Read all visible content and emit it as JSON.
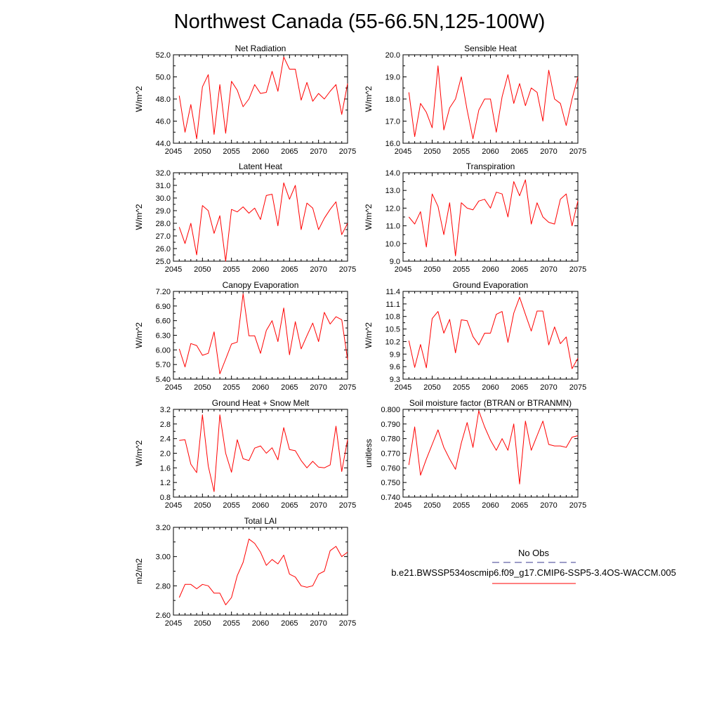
{
  "figure": {
    "title": "Northwest Canada (55-66.5N,125-100W)"
  },
  "legend": {
    "obs_label": "No Obs",
    "obs_color": "#3b3b8f",
    "model_label": "b.e21.BWSSP534oscmip6.f09_g17.CMIP6-SSP5-3.4OS-WACCM.005",
    "model_color": "#ff0000"
  },
  "chart_data": [
    {
      "type": "line",
      "title": "Net Radiation",
      "ylabel": "W/m^2",
      "xlim": [
        2045,
        2075
      ],
      "ylim": [
        44,
        52
      ],
      "yticks": [
        "44.0",
        "46.0",
        "48.0",
        "50.0",
        "52.0"
      ],
      "xticks": [
        "2045",
        "2050",
        "2055",
        "2060",
        "2065",
        "2070",
        "2075"
      ],
      "x": [
        2046,
        2047,
        2048,
        2049,
        2050,
        2051,
        2052,
        2053,
        2054,
        2055,
        2056,
        2057,
        2058,
        2059,
        2060,
        2061,
        2062,
        2063,
        2064,
        2065,
        2066,
        2067,
        2068,
        2069,
        2070,
        2071,
        2072,
        2073,
        2074,
        2075
      ],
      "series": [
        {
          "values": [
            48.3,
            45.0,
            47.5,
            44.4,
            49.1,
            50.2,
            44.8,
            49.3,
            44.9,
            49.6,
            48.8,
            47.3,
            48.0,
            49.3,
            48.5,
            48.6,
            50.5,
            48.7,
            51.8,
            50.7,
            50.7,
            47.9,
            49.5,
            47.8,
            48.5,
            48.0,
            48.7,
            49.3,
            46.6,
            49.4
          ]
        }
      ]
    },
    {
      "type": "line",
      "title": "Sensible Heat",
      "ylabel": "W/m^2",
      "xlim": [
        2045,
        2075
      ],
      "ylim": [
        16,
        20
      ],
      "yticks": [
        "16.0",
        "17.0",
        "18.0",
        "19.0",
        "20.0"
      ],
      "xticks": [
        "2045",
        "2050",
        "2055",
        "2060",
        "2065",
        "2070",
        "2075"
      ],
      "x": [
        2046,
        2047,
        2048,
        2049,
        2050,
        2051,
        2052,
        2053,
        2054,
        2055,
        2056,
        2057,
        2058,
        2059,
        2060,
        2061,
        2062,
        2063,
        2064,
        2065,
        2066,
        2067,
        2068,
        2069,
        2070,
        2071,
        2072,
        2073,
        2074,
        2075
      ],
      "series": [
        {
          "values": [
            18.3,
            16.3,
            17.8,
            17.4,
            16.7,
            19.5,
            16.6,
            17.6,
            18.0,
            19.0,
            17.5,
            16.2,
            17.5,
            18.0,
            18.0,
            16.5,
            18.1,
            19.1,
            17.8,
            18.7,
            17.7,
            18.5,
            18.3,
            17.0,
            19.3,
            18.0,
            17.8,
            16.8,
            18.0,
            19.0
          ]
        }
      ]
    },
    {
      "type": "line",
      "title": "Latent Heat",
      "ylabel": "W/m^2",
      "xlim": [
        2045,
        2075
      ],
      "ylim": [
        25,
        32
      ],
      "yticks": [
        "25.0",
        "26.0",
        "27.0",
        "28.0",
        "29.0",
        "30.0",
        "31.0",
        "32.0"
      ],
      "xticks": [
        "2045",
        "2050",
        "2055",
        "2060",
        "2065",
        "2070",
        "2075"
      ],
      "x": [
        2046,
        2047,
        2048,
        2049,
        2050,
        2051,
        2052,
        2053,
        2054,
        2055,
        2056,
        2057,
        2058,
        2059,
        2060,
        2061,
        2062,
        2063,
        2064,
        2065,
        2066,
        2067,
        2068,
        2069,
        2070,
        2071,
        2072,
        2073,
        2074,
        2075
      ],
      "series": [
        {
          "values": [
            27.7,
            26.4,
            28.0,
            25.5,
            29.4,
            29.0,
            27.2,
            28.6,
            25.0,
            29.1,
            28.9,
            29.3,
            28.8,
            29.2,
            28.3,
            30.2,
            30.3,
            27.8,
            31.2,
            29.9,
            31.0,
            27.5,
            29.6,
            29.2,
            27.5,
            28.4,
            29.1,
            29.7,
            27.1,
            28.0
          ]
        }
      ]
    },
    {
      "type": "line",
      "title": "Transpiration",
      "ylabel": "W/m^2",
      "xlim": [
        2045,
        2075
      ],
      "ylim": [
        9,
        14
      ],
      "yticks": [
        "9.0",
        "10.0",
        "11.0",
        "12.0",
        "13.0",
        "14.0"
      ],
      "xticks": [
        "2045",
        "2050",
        "2055",
        "2060",
        "2065",
        "2070",
        "2075"
      ],
      "x": [
        2046,
        2047,
        2048,
        2049,
        2050,
        2051,
        2052,
        2053,
        2054,
        2055,
        2056,
        2057,
        2058,
        2059,
        2060,
        2061,
        2062,
        2063,
        2064,
        2065,
        2066,
        2067,
        2068,
        2069,
        2070,
        2071,
        2072,
        2073,
        2074,
        2075
      ],
      "series": [
        {
          "values": [
            11.5,
            11.1,
            11.8,
            9.8,
            12.8,
            12.1,
            10.5,
            12.3,
            9.3,
            12.3,
            12.0,
            11.9,
            12.4,
            12.5,
            12.0,
            12.9,
            12.8,
            11.5,
            13.5,
            12.7,
            13.6,
            11.1,
            12.3,
            11.5,
            11.2,
            11.1,
            12.5,
            12.8,
            11.0,
            12.4
          ]
        }
      ]
    },
    {
      "type": "line",
      "title": "Canopy Evaporation",
      "ylabel": "W/m^2",
      "xlim": [
        2045,
        2075
      ],
      "ylim": [
        5.4,
        7.2
      ],
      "yticks": [
        "5.40",
        "5.70",
        "6.00",
        "6.30",
        "6.60",
        "6.90",
        "7.20"
      ],
      "xticks": [
        "2045",
        "2050",
        "2055",
        "2060",
        "2065",
        "2070",
        "2075"
      ],
      "x": [
        2046,
        2047,
        2048,
        2049,
        2050,
        2051,
        2052,
        2053,
        2054,
        2055,
        2056,
        2057,
        2058,
        2059,
        2060,
        2061,
        2062,
        2063,
        2064,
        2065,
        2066,
        2067,
        2068,
        2069,
        2070,
        2071,
        2072,
        2073,
        2074,
        2075
      ],
      "series": [
        {
          "values": [
            6.02,
            5.65,
            6.13,
            6.09,
            5.89,
            5.93,
            6.37,
            5.51,
            5.81,
            6.12,
            6.16,
            7.15,
            6.29,
            6.29,
            5.93,
            6.4,
            6.6,
            6.17,
            6.86,
            5.9,
            6.58,
            6.02,
            6.29,
            6.55,
            6.17,
            6.77,
            6.53,
            6.68,
            6.62,
            5.8
          ]
        }
      ]
    },
    {
      "type": "line",
      "title": "Ground Evaporation",
      "ylabel": "W/m^2",
      "xlim": [
        2045,
        2075
      ],
      "ylim": [
        9.3,
        11.4
      ],
      "yticks": [
        "9.3",
        "9.6",
        "9.9",
        "10.2",
        "10.5",
        "10.8",
        "11.1",
        "11.4"
      ],
      "xticks": [
        "2045",
        "2050",
        "2055",
        "2060",
        "2065",
        "2070",
        "2075"
      ],
      "x": [
        2046,
        2047,
        2048,
        2049,
        2050,
        2051,
        2052,
        2053,
        2054,
        2055,
        2056,
        2057,
        2058,
        2059,
        2060,
        2061,
        2062,
        2063,
        2064,
        2065,
        2066,
        2067,
        2068,
        2069,
        2070,
        2071,
        2072,
        2073,
        2074,
        2075
      ],
      "series": [
        {
          "values": [
            10.22,
            9.58,
            10.13,
            9.57,
            10.75,
            10.92,
            10.4,
            10.73,
            9.93,
            10.72,
            10.7,
            10.32,
            10.12,
            10.4,
            10.4,
            10.85,
            10.92,
            10.18,
            10.88,
            11.26,
            10.85,
            10.45,
            10.93,
            10.93,
            10.12,
            10.55,
            10.15,
            10.31,
            9.55,
            9.8
          ]
        }
      ]
    },
    {
      "type": "line",
      "title": "Ground Heat + Snow Melt",
      "ylabel": "W/m^2",
      "xlim": [
        2045,
        2075
      ],
      "ylim": [
        0.8,
        3.2
      ],
      "yticks": [
        "0.8",
        "1.2",
        "1.6",
        "2.0",
        "2.4",
        "2.8",
        "3.2"
      ],
      "xticks": [
        "2045",
        "2050",
        "2055",
        "2060",
        "2065",
        "2070",
        "2075"
      ],
      "x": [
        2046,
        2047,
        2048,
        2049,
        2050,
        2051,
        2052,
        2053,
        2054,
        2055,
        2056,
        2057,
        2058,
        2059,
        2060,
        2061,
        2062,
        2063,
        2064,
        2065,
        2066,
        2067,
        2068,
        2069,
        2070,
        2071,
        2072,
        2073,
        2074,
        2075
      ],
      "series": [
        {
          "values": [
            2.35,
            2.37,
            1.7,
            1.47,
            3.05,
            1.65,
            0.95,
            3.05,
            2.0,
            1.48,
            2.37,
            1.85,
            1.8,
            2.14,
            2.2,
            2.0,
            2.15,
            1.82,
            2.7,
            2.1,
            2.07,
            1.8,
            1.6,
            1.78,
            1.62,
            1.6,
            1.68,
            2.74,
            1.5,
            2.37
          ]
        }
      ]
    },
    {
      "type": "line",
      "title": "Soil moisture factor (BTRAN or BTRANMN)",
      "ylabel": "unitless",
      "xlim": [
        2045,
        2075
      ],
      "ylim": [
        0.74,
        0.8
      ],
      "yticks": [
        "0.740",
        "0.750",
        "0.760",
        "0.770",
        "0.780",
        "0.790",
        "0.800"
      ],
      "xticks": [
        "2045",
        "2050",
        "2055",
        "2060",
        "2065",
        "2070",
        "2075"
      ],
      "x": [
        2046,
        2047,
        2048,
        2049,
        2050,
        2051,
        2052,
        2053,
        2054,
        2055,
        2056,
        2057,
        2058,
        2059,
        2060,
        2061,
        2062,
        2063,
        2064,
        2065,
        2066,
        2067,
        2068,
        2069,
        2070,
        2071,
        2072,
        2073,
        2074,
        2075
      ],
      "series": [
        {
          "values": [
            0.762,
            0.788,
            0.755,
            0.766,
            0.776,
            0.786,
            0.774,
            0.766,
            0.759,
            0.777,
            0.791,
            0.774,
            0.799,
            0.788,
            0.779,
            0.772,
            0.78,
            0.772,
            0.79,
            0.749,
            0.792,
            0.772,
            0.782,
            0.792,
            0.776,
            0.775,
            0.775,
            0.774,
            0.781,
            0.782
          ]
        }
      ]
    },
    {
      "type": "line",
      "title": "Total LAI",
      "ylabel": "m2/m2",
      "xlim": [
        2045,
        2075
      ],
      "ylim": [
        2.6,
        3.2
      ],
      "yticks": [
        "2.60",
        "2.80",
        "3.00",
        "3.20"
      ],
      "xticks": [
        "2045",
        "2050",
        "2055",
        "2060",
        "2065",
        "2070",
        "2075"
      ],
      "x": [
        2046,
        2047,
        2048,
        2049,
        2050,
        2051,
        2052,
        2053,
        2054,
        2055,
        2056,
        2057,
        2058,
        2059,
        2060,
        2061,
        2062,
        2063,
        2064,
        2065,
        2066,
        2067,
        2068,
        2069,
        2070,
        2071,
        2072,
        2073,
        2074,
        2075
      ],
      "series": [
        {
          "values": [
            2.72,
            2.81,
            2.81,
            2.78,
            2.81,
            2.8,
            2.75,
            2.75,
            2.67,
            2.72,
            2.87,
            2.96,
            3.12,
            3.09,
            3.03,
            2.94,
            2.98,
            2.95,
            3.01,
            2.88,
            2.86,
            2.8,
            2.79,
            2.8,
            2.88,
            2.9,
            3.04,
            3.07,
            3.0,
            3.03
          ]
        }
      ]
    }
  ]
}
